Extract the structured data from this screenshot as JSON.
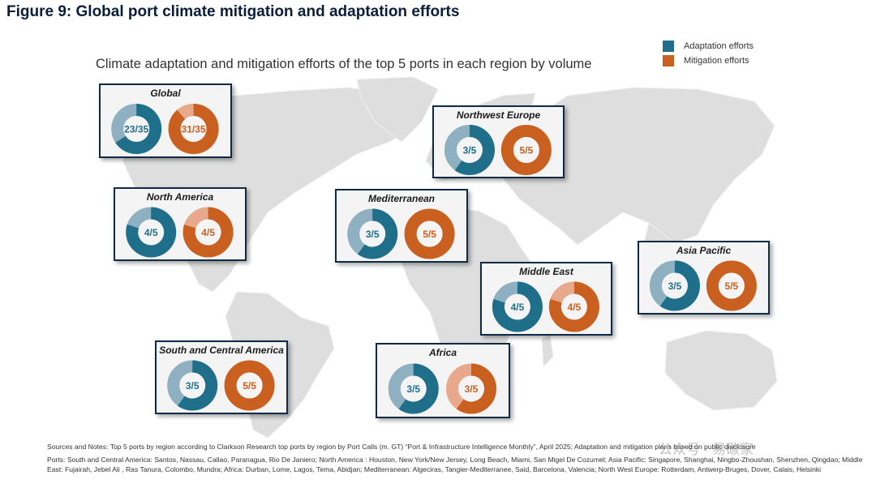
{
  "figure_title": "Figure 9: Global port climate mitigation and adaptation efforts",
  "colors": {
    "adaptation": "#1f6f8b",
    "adaptation_light": "#8fb0c0",
    "mitigation": "#c9601f",
    "mitigation_light": "#e8a88c",
    "panel_border": "#0f2a47"
  },
  "chart_data": {
    "type": "donut",
    "title": "Climate adaptation and mitigation efforts of the top 5 ports in each region by volume",
    "legend": [
      {
        "name": "Adaptation efforts",
        "color": "#1f6f8b"
      },
      {
        "name": "Mitigation efforts",
        "color": "#c9601f"
      }
    ],
    "legend_position": "top-right",
    "regions": [
      {
        "name": "Global",
        "adaptation": {
          "value": 23,
          "total": 35,
          "label": "23/35"
        },
        "mitigation": {
          "value": 31,
          "total": 35,
          "label": "31/35"
        }
      },
      {
        "name": "Northwest Europe",
        "adaptation": {
          "value": 3,
          "total": 5,
          "label": "3/5"
        },
        "mitigation": {
          "value": 5,
          "total": 5,
          "label": "5/5"
        }
      },
      {
        "name": "North America",
        "adaptation": {
          "value": 4,
          "total": 5,
          "label": "4/5"
        },
        "mitigation": {
          "value": 4,
          "total": 5,
          "label": "4/5"
        }
      },
      {
        "name": "Mediterranean",
        "adaptation": {
          "value": 3,
          "total": 5,
          "label": "3/5"
        },
        "mitigation": {
          "value": 5,
          "total": 5,
          "label": "5/5"
        }
      },
      {
        "name": "Asia Pacific",
        "adaptation": {
          "value": 3,
          "total": 5,
          "label": "3/5"
        },
        "mitigation": {
          "value": 5,
          "total": 5,
          "label": "5/5"
        }
      },
      {
        "name": "Middle East",
        "adaptation": {
          "value": 4,
          "total": 5,
          "label": "4/5"
        },
        "mitigation": {
          "value": 4,
          "total": 5,
          "label": "4/5"
        }
      },
      {
        "name": "South and Central America",
        "adaptation": {
          "value": 3,
          "total": 5,
          "label": "3/5"
        },
        "mitigation": {
          "value": 5,
          "total": 5,
          "label": "5/5"
        }
      },
      {
        "name": "Africa",
        "adaptation": {
          "value": 3,
          "total": 5,
          "label": "3/5"
        },
        "mitigation": {
          "value": 3,
          "total": 5,
          "label": "3/5"
        }
      }
    ]
  },
  "footer": {
    "sources": "Sources and Notes: Top 5 ports by region according to Clarkson Research top ports by region by Port Calls (m. GT) “Port & Infrastructure Intelligence Monthly”, April 2025; Adaptation and mitigation plans based on public disclosure",
    "ports": "Ports: South and Central America: Santos, Nassau, Callao, Paranagua, Rio De Janiero; North America : Houston, New York/New Jersey, Long Beach, Miami, San Migel De Cozumel; Asia Pacific: Singapore, Shanghai, Ningbo-Zhoushan, Shenzhen, Qingdao; Middle East: Fujairah, Jebel Ali , Ras Tanura, Colombo, Mundra; Africa: Durban, Lome, Lagos, Tema, Abidjan; Mediterranean: Algeciras, Tangier-Mediterranee, Said, Barcelona, Valencia; North West Europe: Rotterdam, Antwerp-Bruges, Dover, Calais, Helsinki"
  },
  "watermark": "公众号 · 易碳家"
}
